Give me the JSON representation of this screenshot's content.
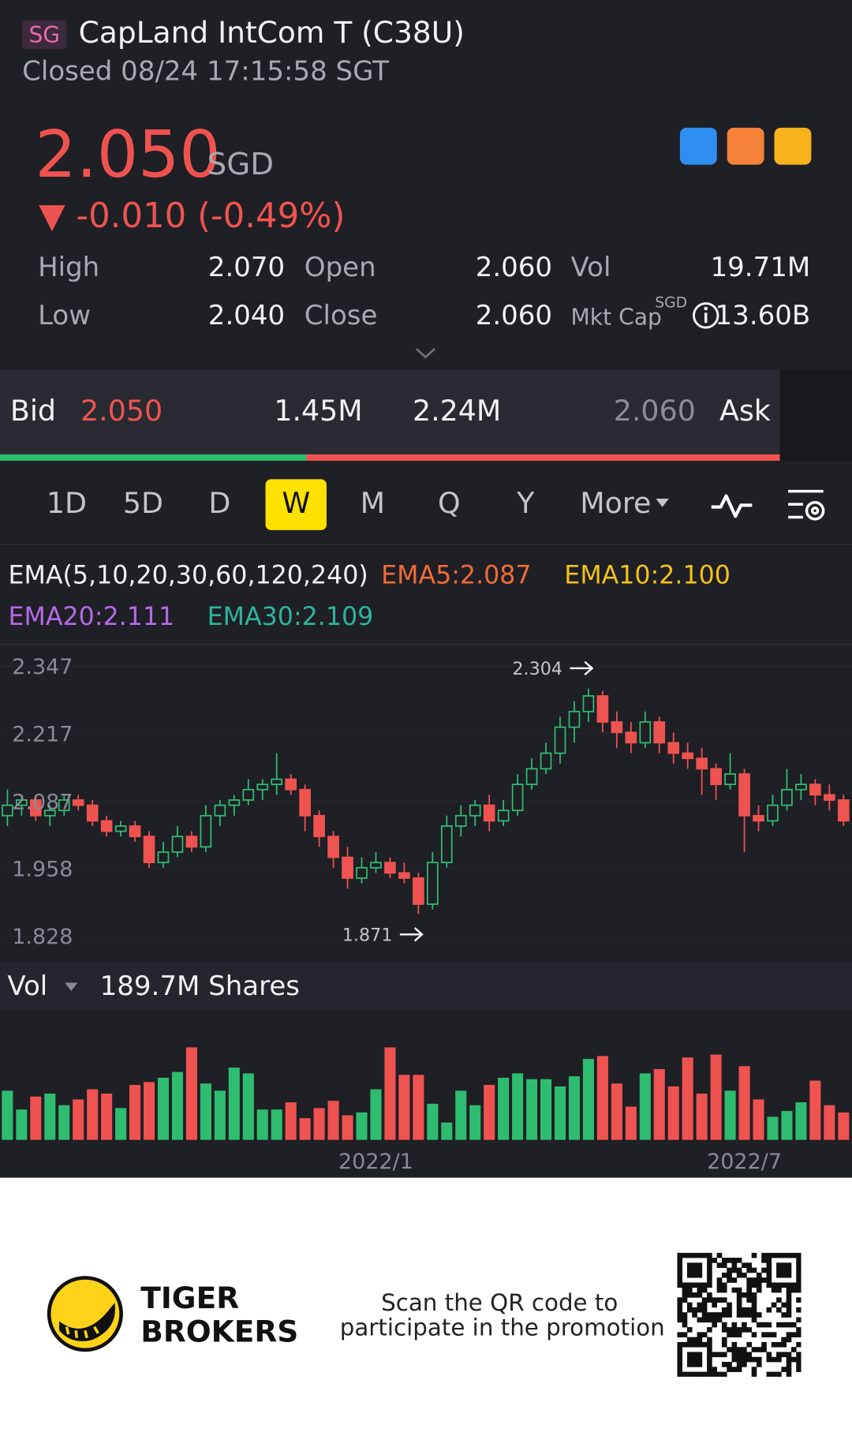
{
  "header": {
    "market": "SG",
    "title": "CapLand IntCom T (C38U)",
    "status": "Closed 08/24 17:15:58 SGT"
  },
  "quote": {
    "price": "2.050",
    "currency": "SGD",
    "change": "▼ -0.010 (-0.49%)",
    "stats": [
      {
        "label": "High",
        "value": "2.070"
      },
      {
        "label": "Open",
        "value": "2.060"
      },
      {
        "label": "Vol",
        "value": "19.71M"
      },
      {
        "label": "Low",
        "value": "2.040"
      },
      {
        "label": "Close",
        "value": "2.060"
      },
      {
        "label": "Mkt Cap",
        "unit": "SGD",
        "value": "13.60B"
      }
    ]
  },
  "bid_ask": {
    "bid_label": "Bid",
    "bid_price": "2.050",
    "bid_volume": {
      "value": 1.45,
      "label": "1.45M"
    },
    "ask_volume": {
      "value": 2.24,
      "label": "2.24M"
    },
    "ask_price": "2.060",
    "ask_label": "Ask"
  },
  "timeframes": {
    "items": [
      "1D",
      "5D",
      "D",
      "W",
      "M",
      "Q",
      "Y"
    ],
    "more": "More",
    "selected_index": 3
  },
  "indicators": {
    "name": "EMA(5,10,20,30,60,120,240)",
    "lines": [
      {
        "text": "EMA5:2.087",
        "color": "#f26b36"
      },
      {
        "text": "EMA10:2.100",
        "color": "#f2c21b"
      },
      {
        "text": "EMA20:2.111",
        "color": "#b46ae8"
      },
      {
        "text": "EMA30:2.109",
        "color": "#2db59c"
      }
    ]
  },
  "chart_data": [
    {
      "type": "candlestick",
      "up_color": "#2ebd70",
      "down_color": "#ef5350",
      "ylim": [
        1.782,
        2.388
      ],
      "yticks": [
        2.347,
        2.217,
        2.087,
        1.958,
        1.828
      ],
      "annotations": [
        2.304,
        1.871
      ],
      "open": [
        2.06,
        2.08,
        2.09,
        2.06,
        2.07,
        2.09,
        2.08,
        2.05,
        2.03,
        2.04,
        2.02,
        1.97,
        1.99,
        2.02,
        2.0,
        2.06,
        2.08,
        2.09,
        2.11,
        2.12,
        2.13,
        2.11,
        2.06,
        2.02,
        1.98,
        1.94,
        1.96,
        1.97,
        1.95,
        1.94,
        1.89,
        1.97,
        2.04,
        2.06,
        2.08,
        2.05,
        2.07,
        2.12,
        2.15,
        2.18,
        2.23,
        2.26,
        2.29,
        2.24,
        2.22,
        2.2,
        2.24,
        2.2,
        2.18,
        2.17,
        2.15,
        2.12,
        2.14,
        2.06,
        2.05,
        2.08,
        2.11,
        2.12,
        2.1,
        2.09
      ],
      "high": [
        2.11,
        2.1,
        2.1,
        2.08,
        2.1,
        2.1,
        2.09,
        2.06,
        2.05,
        2.05,
        2.03,
        2.01,
        2.04,
        2.03,
        2.08,
        2.09,
        2.1,
        2.13,
        2.13,
        2.18,
        2.14,
        2.12,
        2.07,
        2.03,
        2.0,
        1.98,
        1.99,
        1.98,
        1.97,
        1.95,
        1.99,
        2.06,
        2.08,
        2.09,
        2.1,
        2.09,
        2.14,
        2.17,
        2.2,
        2.25,
        2.28,
        2.304,
        2.3,
        2.26,
        2.24,
        2.26,
        2.25,
        2.22,
        2.2,
        2.19,
        2.16,
        2.18,
        2.15,
        2.08,
        2.1,
        2.15,
        2.14,
        2.13,
        2.12,
        2.1
      ],
      "low": [
        2.04,
        2.06,
        2.05,
        2.04,
        2.06,
        2.07,
        2.04,
        2.02,
        2.02,
        2.01,
        1.96,
        1.96,
        1.98,
        1.99,
        1.99,
        2.04,
        2.06,
        2.08,
        2.09,
        2.1,
        2.1,
        2.03,
        2.0,
        1.96,
        1.92,
        1.93,
        1.95,
        1.94,
        1.93,
        1.871,
        1.88,
        1.96,
        2.02,
        2.04,
        2.03,
        2.04,
        2.06,
        2.11,
        2.14,
        2.16,
        2.2,
        2.24,
        2.22,
        2.19,
        2.18,
        2.19,
        2.18,
        2.16,
        2.15,
        2.1,
        2.09,
        2.11,
        1.99,
        2.03,
        2.04,
        2.07,
        2.09,
        2.08,
        2.07,
        2.04
      ],
      "close": [
        2.08,
        2.09,
        2.06,
        2.07,
        2.09,
        2.08,
        2.05,
        2.03,
        2.04,
        2.02,
        1.97,
        1.99,
        2.02,
        2.0,
        2.06,
        2.08,
        2.09,
        2.11,
        2.12,
        2.13,
        2.11,
        2.06,
        2.02,
        1.98,
        1.94,
        1.96,
        1.97,
        1.95,
        1.94,
        1.89,
        1.97,
        2.04,
        2.06,
        2.08,
        2.05,
        2.07,
        2.12,
        2.15,
        2.18,
        2.23,
        2.26,
        2.29,
        2.24,
        2.22,
        2.2,
        2.24,
        2.2,
        2.18,
        2.17,
        2.15,
        2.12,
        2.14,
        2.06,
        2.05,
        2.08,
        2.11,
        2.12,
        2.1,
        2.09,
        2.05
      ]
    },
    {
      "type": "bar",
      "label": "Vol",
      "value_label": "189.7M Shares",
      "ylim": [
        0,
        640
      ],
      "categories": [
        null,
        null,
        null,
        null,
        null,
        null,
        null,
        null,
        null,
        null,
        null,
        null,
        null,
        null,
        null,
        null,
        null,
        null,
        null,
        null,
        null,
        null,
        null,
        null,
        null,
        null,
        "2022/1",
        null,
        null,
        null,
        null,
        null,
        null,
        null,
        null,
        null,
        null,
        null,
        null,
        null,
        null,
        null,
        null,
        null,
        null,
        null,
        null,
        null,
        null,
        null,
        null,
        null,
        "2022/7",
        null,
        null,
        null,
        null,
        null,
        null,
        null
      ],
      "values": [
        340,
        210,
        300,
        320,
        240,
        280,
        350,
        320,
        220,
        380,
        400,
        430,
        470,
        640,
        390,
        340,
        500,
        460,
        210,
        210,
        260,
        150,
        220,
        270,
        170,
        190,
        350,
        640,
        450,
        450,
        250,
        120,
        340,
        240,
        380,
        430,
        460,
        420,
        420,
        370,
        440,
        560,
        580,
        390,
        230,
        460,
        490,
        370,
        570,
        320,
        590,
        340,
        510,
        280,
        160,
        200,
        260,
        410,
        240,
        189.7
      ]
    }
  ],
  "footer": {
    "brand_line1": "TIGER",
    "brand_line2": "BROKERS",
    "promo_line1": "Scan the QR code to",
    "promo_line2": "participate in the promotion"
  }
}
